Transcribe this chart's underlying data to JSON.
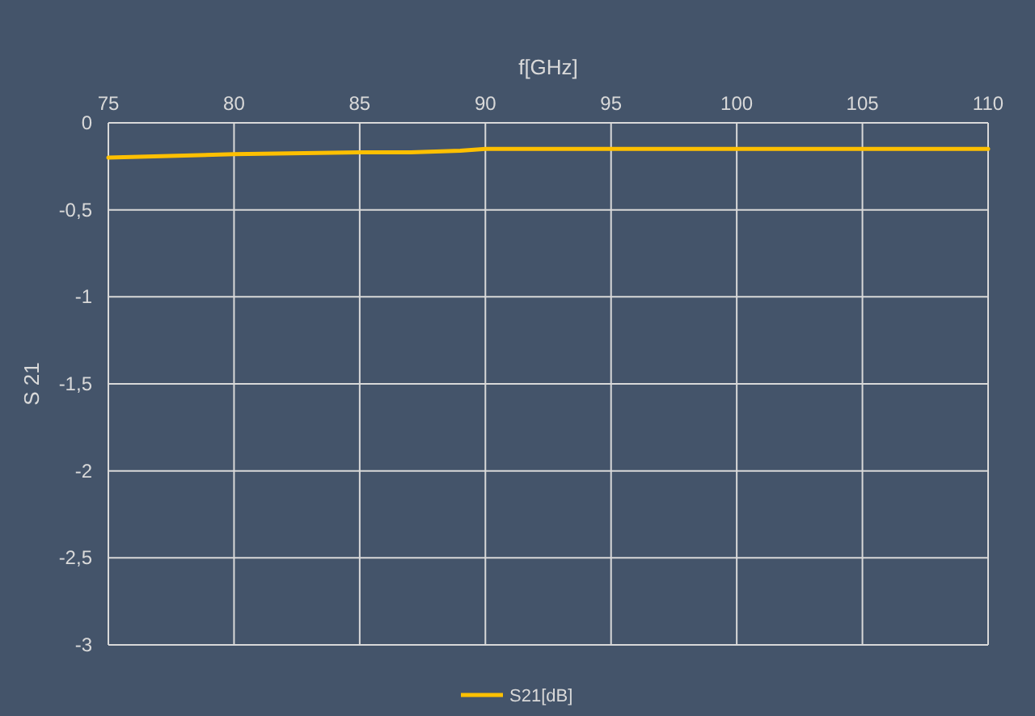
{
  "chart_data": {
    "type": "line",
    "xlabel": "f[GHz]",
    "ylabel": "S 21",
    "x": [
      75,
      80,
      85,
      87,
      89,
      90,
      92,
      95,
      100,
      105,
      110
    ],
    "series": [
      {
        "name": "S21[dB]",
        "color": "#ffc000",
        "values": [
          -0.2,
          -0.18,
          -0.17,
          -0.17,
          -0.16,
          -0.15,
          -0.15,
          -0.15,
          -0.15,
          -0.15,
          -0.15
        ]
      }
    ],
    "xlim": [
      75,
      110
    ],
    "xticks": [
      75,
      80,
      85,
      90,
      95,
      100,
      105,
      110
    ],
    "ylim": [
      -3,
      0
    ],
    "yticks": [
      {
        "value": -3,
        "label": "-3"
      },
      {
        "value": -2.5,
        "label": "-2,5"
      },
      {
        "value": -2,
        "label": "-2"
      },
      {
        "value": -1.5,
        "label": "-1,5"
      },
      {
        "value": -1,
        "label": "-1"
      },
      {
        "value": -0.5,
        "label": "-0,5"
      },
      {
        "value": 0,
        "label": "0"
      }
    ],
    "grid": true,
    "legend": "bottom",
    "marker": "none",
    "line_style": "solid"
  }
}
